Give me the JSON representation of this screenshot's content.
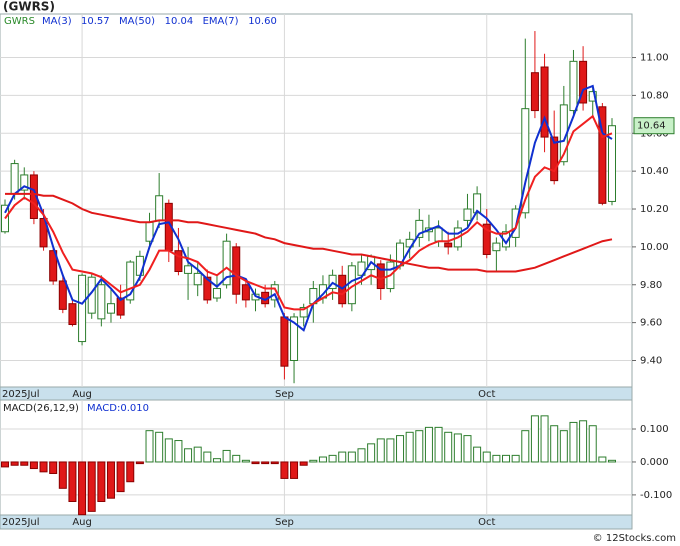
{
  "chart_data": [
    {
      "type": "candlestick",
      "title": "(GWRS)",
      "symbol": "GWRS",
      "categories": [
        "2025Jul",
        null,
        null,
        null,
        null,
        null,
        null,
        null,
        "Aug",
        null,
        null,
        null,
        null,
        null,
        null,
        null,
        null,
        null,
        null,
        null,
        null,
        null,
        null,
        null,
        null,
        null,
        null,
        null,
        null,
        "Sep",
        null,
        null,
        null,
        null,
        null,
        null,
        null,
        null,
        null,
        null,
        null,
        null,
        null,
        null,
        null,
        null,
        null,
        null,
        null,
        null,
        "Oct",
        null,
        null,
        null,
        null,
        null,
        null,
        null,
        null,
        null,
        null,
        null,
        null,
        null
      ],
      "open": [
        10.08,
        10.28,
        10.3,
        10.38,
        10.15,
        9.98,
        9.82,
        9.7,
        9.5,
        9.65,
        9.62,
        9.65,
        9.73,
        9.72,
        9.85,
        10.03,
        10.14,
        10.23,
        9.98,
        9.86,
        9.8,
        9.84,
        9.73,
        9.8,
        10.0,
        9.8,
        9.72,
        9.76,
        9.72,
        9.63,
        9.4,
        9.63,
        9.7,
        9.73,
        9.78,
        9.85,
        9.7,
        9.85,
        9.88,
        9.91,
        9.78,
        9.9,
        10.0,
        10.05,
        10.08,
        10.03,
        10.02,
        10.0,
        10.14,
        10.18,
        10.12,
        9.98,
        10.0,
        10.05,
        10.18,
        10.92,
        10.95,
        10.58,
        10.45,
        10.72,
        10.98,
        10.77,
        10.74,
        10.24
      ],
      "high": [
        10.25,
        10.46,
        10.42,
        10.4,
        10.2,
        10.0,
        9.85,
        9.72,
        9.86,
        9.86,
        9.85,
        9.78,
        9.8,
        9.93,
        9.98,
        10.18,
        10.39,
        10.25,
        10.1,
        10.0,
        9.92,
        9.88,
        9.85,
        10.07,
        10.02,
        9.82,
        9.78,
        9.8,
        9.82,
        9.65,
        9.65,
        9.7,
        9.82,
        9.85,
        9.88,
        9.9,
        9.92,
        9.96,
        9.96,
        9.93,
        9.96,
        10.04,
        10.08,
        10.2,
        10.17,
        10.14,
        10.08,
        10.14,
        10.28,
        10.32,
        10.2,
        10.05,
        10.12,
        10.22,
        11.1,
        11.14,
        11.02,
        10.72,
        10.85,
        11.04,
        11.06,
        10.85,
        10.76,
        10.68
      ],
      "low": [
        10.07,
        10.25,
        10.25,
        10.12,
        9.98,
        9.8,
        9.65,
        9.58,
        9.48,
        9.62,
        9.58,
        9.6,
        9.62,
        9.7,
        9.82,
        10.0,
        10.1,
        9.92,
        9.85,
        9.72,
        9.74,
        9.7,
        9.71,
        9.78,
        9.7,
        9.68,
        9.66,
        9.68,
        9.68,
        9.3,
        9.28,
        9.58,
        9.6,
        9.7,
        9.72,
        9.68,
        9.66,
        9.8,
        9.8,
        9.72,
        9.76,
        9.88,
        9.94,
        10.0,
        10.03,
        10.0,
        9.96,
        9.98,
        10.1,
        10.14,
        9.94,
        9.87,
        9.98,
        10.0,
        10.15,
        10.68,
        10.5,
        10.33,
        10.43,
        10.7,
        10.72,
        10.68,
        10.22,
        10.22
      ],
      "close": [
        10.22,
        10.44,
        10.38,
        10.15,
        10.0,
        9.82,
        9.67,
        9.59,
        9.85,
        9.84,
        9.8,
        9.7,
        9.64,
        9.92,
        9.95,
        10.13,
        10.27,
        9.98,
        9.87,
        9.9,
        9.86,
        9.72,
        9.78,
        10.03,
        9.75,
        9.72,
        9.75,
        9.7,
        9.8,
        9.37,
        9.63,
        9.68,
        9.78,
        9.8,
        9.85,
        9.7,
        9.9,
        9.92,
        9.95,
        9.78,
        9.92,
        10.02,
        10.04,
        10.14,
        10.1,
        10.1,
        10.0,
        10.1,
        10.2,
        10.28,
        9.96,
        10.02,
        10.08,
        10.2,
        10.73,
        10.72,
        10.58,
        10.35,
        10.75,
        10.98,
        10.76,
        10.82,
        10.23,
        10.64
      ],
      "up_color": "#2d7d2d",
      "down_color": "#e01818",
      "series": [
        {
          "name": "MA(3)",
          "color": "#1030d0",
          "last": 10.57,
          "values": [
            10.18,
            10.28,
            10.32,
            10.3,
            10.17,
            10.0,
            9.85,
            9.72,
            9.7,
            9.76,
            9.83,
            9.78,
            9.72,
            9.75,
            9.84,
            10.0,
            10.12,
            10.13,
            10.04,
            9.92,
            9.88,
            9.83,
            9.79,
            9.84,
            9.85,
            9.83,
            9.74,
            9.72,
            9.75,
            9.63,
            9.6,
            9.56,
            9.7,
            9.75,
            9.81,
            9.78,
            9.82,
            9.84,
            9.92,
            9.88,
            9.88,
            9.9,
            9.99,
            10.07,
            10.09,
            10.11,
            10.07,
            10.07,
            10.1,
            10.19,
            10.15,
            10.09,
            10.02,
            10.1,
            10.34,
            10.55,
            10.68,
            10.55,
            10.56,
            10.69,
            10.83,
            10.85,
            10.6,
            10.57
          ]
        },
        {
          "name": "MA(50)",
          "color": "#e01818",
          "last": 10.04,
          "values": [
            10.28,
            10.28,
            10.28,
            10.28,
            10.27,
            10.27,
            10.25,
            10.23,
            10.2,
            10.18,
            10.17,
            10.16,
            10.15,
            10.14,
            10.13,
            10.13,
            10.14,
            10.14,
            10.14,
            10.13,
            10.13,
            10.12,
            10.11,
            10.1,
            10.09,
            10.08,
            10.07,
            10.05,
            10.04,
            10.02,
            10.01,
            10.0,
            9.99,
            9.99,
            9.98,
            9.97,
            9.96,
            9.96,
            9.95,
            9.94,
            9.93,
            9.92,
            9.91,
            9.9,
            9.89,
            9.89,
            9.88,
            9.88,
            9.88,
            9.88,
            9.87,
            9.87,
            9.87,
            9.87,
            9.88,
            9.89,
            9.91,
            9.93,
            9.95,
            9.97,
            9.99,
            10.01,
            10.03,
            10.04
          ]
        },
        {
          "name": "EMA(7)",
          "color": "#f02020",
          "last": {
            "value": 10.6,
            "label": "10.60"
          },
          "values": [
            10.15,
            10.22,
            10.26,
            10.23,
            10.17,
            10.08,
            9.97,
            9.88,
            9.87,
            9.86,
            9.84,
            9.8,
            9.76,
            9.78,
            9.8,
            9.88,
            9.98,
            9.98,
            9.95,
            9.94,
            9.92,
            9.87,
            9.85,
            9.89,
            9.85,
            9.82,
            9.8,
            9.78,
            9.78,
            9.68,
            9.67,
            9.67,
            9.7,
            9.73,
            9.76,
            9.75,
            9.79,
            9.82,
            9.85,
            9.83,
            9.85,
            9.9,
            9.93,
            9.98,
            10.01,
            10.03,
            10.03,
            10.05,
            10.08,
            10.13,
            10.09,
            10.07,
            10.07,
            10.1,
            10.25,
            10.37,
            10.42,
            10.4,
            10.49,
            10.61,
            10.65,
            10.69,
            10.58,
            10.6
          ]
        }
      ],
      "last_price": 10.64,
      "ylim": [
        9.26,
        11.23
      ],
      "yticks": [
        {
          "value": 9.4,
          "label": "9.40"
        },
        {
          "value": 9.6,
          "label": "9.60"
        },
        {
          "value": 9.8,
          "label": "9.80"
        },
        {
          "value": 10,
          "label": "10.00"
        },
        {
          "value": 10.2,
          "label": "10.20"
        },
        {
          "value": 10.4,
          "label": "10.40"
        },
        {
          "value": 10.6,
          "label": "10.60"
        },
        {
          "value": 10.8,
          "label": "10.80"
        },
        {
          "value": 11,
          "label": "11.00"
        }
      ],
      "grid": true
    },
    {
      "type": "bar",
      "title": "MACD(26,12,9)",
      "legend": "MACD:0.010",
      "up_color": "#2d7d2d",
      "down_color": "#e01818",
      "values": [
        -0.015,
        -0.01,
        -0.01,
        -0.02,
        -0.03,
        -0.035,
        -0.08,
        -0.12,
        -0.16,
        -0.15,
        -0.12,
        -0.11,
        -0.09,
        -0.06,
        -0.005,
        0.095,
        0.09,
        0.07,
        0.065,
        0.04,
        0.045,
        0.03,
        0.01,
        0.035,
        0.02,
        0.005,
        -0.005,
        -0.005,
        -0.005,
        -0.05,
        -0.05,
        -0.01,
        0.005,
        0.015,
        0.02,
        0.03,
        0.03,
        0.04,
        0.055,
        0.07,
        0.07,
        0.08,
        0.09,
        0.095,
        0.105,
        0.105,
        0.09,
        0.085,
        0.08,
        0.045,
        0.03,
        0.02,
        0.02,
        0.02,
        0.095,
        0.14,
        0.14,
        0.11,
        0.095,
        0.12,
        0.125,
        0.11,
        0.015,
        0.005
      ],
      "ylim": [
        -0.161,
        0.182
      ],
      "yticks": [
        {
          "value": 0.1,
          "label": "0.100"
        },
        {
          "value": 0,
          "label": "0.000"
        },
        {
          "value": -0.1,
          "label": "-0.100"
        }
      ],
      "grid": true
    }
  ],
  "footer": "© 12Stocks.com"
}
